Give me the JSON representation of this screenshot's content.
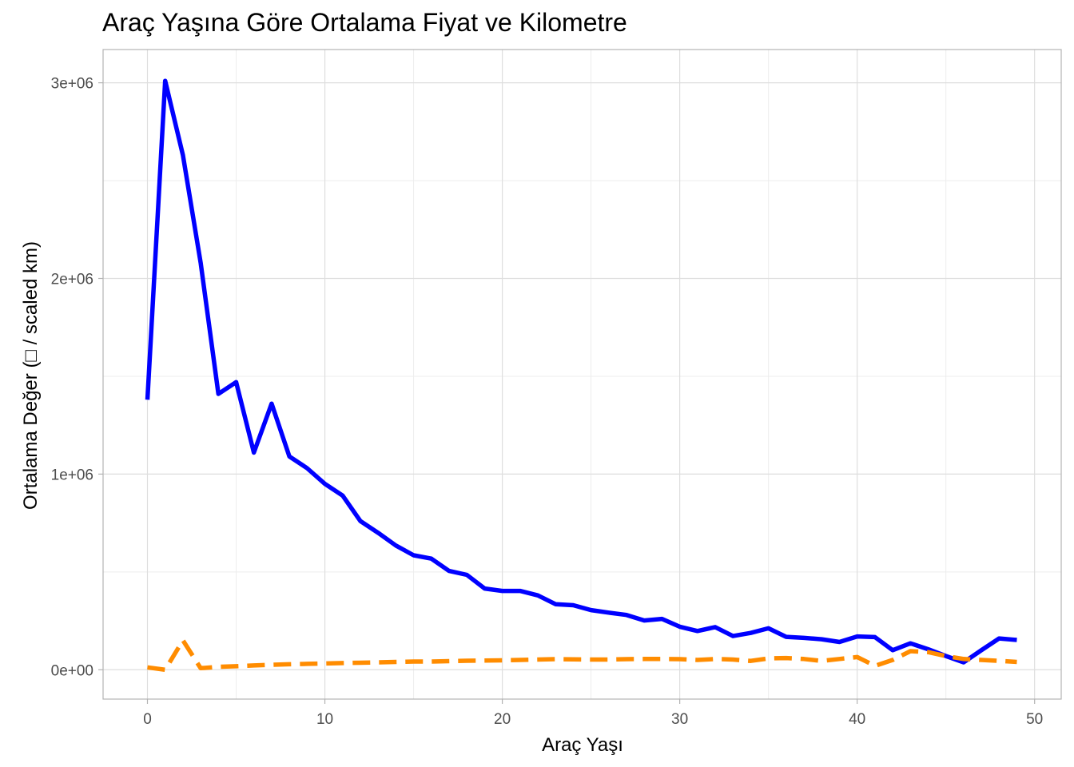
{
  "chart_data": {
    "type": "line",
    "title": "Araç Yaşına Göre Ortalama Fiyat ve Kilometre",
    "xlabel": "Araç Yaşı",
    "ylabel": "Ortalama Değer (□ / scaled km)",
    "xlim": [
      -2.5,
      51.5
    ],
    "ylim": [
      -150000,
      3170000
    ],
    "x_ticks": [
      0,
      10,
      20,
      30,
      40,
      50
    ],
    "x_tick_labels": [
      "0",
      "10",
      "20",
      "30",
      "40",
      "50"
    ],
    "y_ticks": [
      0,
      1000000,
      2000000,
      3000000
    ],
    "y_tick_labels": [
      "0e+00",
      "1e+06",
      "2e+06",
      "3e+06"
    ],
    "grid": true,
    "legend": "none",
    "series": [
      {
        "color": "#0000ff",
        "line_style": "solid",
        "points": [
          [
            0,
            1380000
          ],
          [
            1,
            3010000
          ],
          [
            2,
            2630000
          ],
          [
            3,
            2080000
          ],
          [
            4,
            1410000
          ],
          [
            5,
            1470000
          ],
          [
            6,
            1110000
          ],
          [
            7,
            1360000
          ],
          [
            8,
            1090000
          ],
          [
            9,
            1030000
          ],
          [
            10,
            950000
          ],
          [
            11,
            890000
          ],
          [
            12,
            760000
          ],
          [
            13,
            700000
          ],
          [
            14,
            635000
          ],
          [
            15,
            585000
          ],
          [
            16,
            568000
          ],
          [
            17,
            505000
          ],
          [
            18,
            485000
          ],
          [
            19,
            415000
          ],
          [
            20,
            403000
          ],
          [
            21,
            403000
          ],
          [
            22,
            380000
          ],
          [
            23,
            335000
          ],
          [
            24,
            330000
          ],
          [
            25,
            305000
          ],
          [
            26,
            292000
          ],
          [
            27,
            280000
          ],
          [
            28,
            252000
          ],
          [
            29,
            260000
          ],
          [
            30,
            220000
          ],
          [
            31,
            198000
          ],
          [
            32,
            218000
          ],
          [
            33,
            172000
          ],
          [
            34,
            188000
          ],
          [
            35,
            212000
          ],
          [
            36,
            168000
          ],
          [
            37,
            163000
          ],
          [
            38,
            156000
          ],
          [
            39,
            142000
          ],
          [
            40,
            170000
          ],
          [
            41,
            167000
          ],
          [
            42,
            100000
          ],
          [
            43,
            135000
          ],
          [
            44,
            105000
          ],
          [
            45,
            70000
          ],
          [
            46,
            38000
          ],
          [
            47,
            100000
          ],
          [
            48,
            160000
          ],
          [
            49,
            152000
          ]
        ]
      },
      {
        "color": "#ff8c00",
        "line_style": "dashed",
        "points": [
          [
            0,
            12000
          ],
          [
            1,
            0
          ],
          [
            2,
            150000
          ],
          [
            3,
            8000
          ],
          [
            4,
            15000
          ],
          [
            5,
            18000
          ],
          [
            6,
            22000
          ],
          [
            7,
            25000
          ],
          [
            8,
            28000
          ],
          [
            9,
            30000
          ],
          [
            10,
            32000
          ],
          [
            11,
            34000
          ],
          [
            12,
            36000
          ],
          [
            13,
            38000
          ],
          [
            14,
            40000
          ],
          [
            15,
            42000
          ],
          [
            16,
            42000
          ],
          [
            17,
            44000
          ],
          [
            18,
            46000
          ],
          [
            19,
            47000
          ],
          [
            20,
            48000
          ],
          [
            21,
            50000
          ],
          [
            22,
            52000
          ],
          [
            23,
            54000
          ],
          [
            24,
            53000
          ],
          [
            25,
            52000
          ],
          [
            26,
            52000
          ],
          [
            27,
            54000
          ],
          [
            28,
            55000
          ],
          [
            29,
            55000
          ],
          [
            30,
            54000
          ],
          [
            31,
            50000
          ],
          [
            32,
            55000
          ],
          [
            33,
            52000
          ],
          [
            34,
            45000
          ],
          [
            35,
            58000
          ],
          [
            36,
            60000
          ],
          [
            37,
            55000
          ],
          [
            38,
            45000
          ],
          [
            39,
            55000
          ],
          [
            40,
            65000
          ],
          [
            41,
            20000
          ],
          [
            42,
            50000
          ],
          [
            43,
            95000
          ],
          [
            44,
            90000
          ],
          [
            45,
            70000
          ],
          [
            46,
            55000
          ],
          [
            47,
            50000
          ],
          [
            48,
            45000
          ],
          [
            49,
            40000
          ]
        ]
      }
    ]
  }
}
